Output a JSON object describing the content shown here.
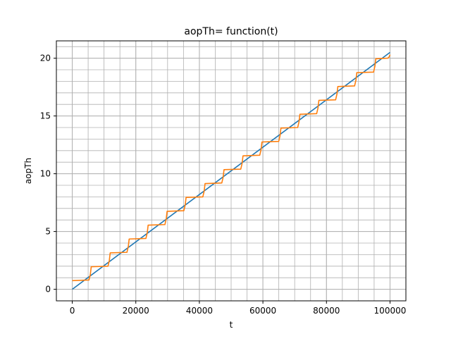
{
  "chart_data": {
    "type": "line",
    "title": "aopTh= function(t)",
    "xlabel": "t",
    "ylabel": "aopTh",
    "xlim": [
      -5000,
      105000
    ],
    "ylim": [
      -1.0,
      21.5
    ],
    "xticks": [
      0,
      20000,
      40000,
      60000,
      80000,
      100000
    ],
    "xtick_labels": [
      "0",
      "20000",
      "40000",
      "60000",
      "80000",
      "100000"
    ],
    "yticks": [
      0,
      5,
      10,
      15,
      20
    ],
    "ytick_labels": [
      "0",
      "5",
      "10",
      "15",
      "20"
    ],
    "minor_x_step": 5000,
    "minor_y_step": 1,
    "grid": true,
    "legend": "none",
    "colors": {
      "series1": "#1f77b4",
      "series2": "#ff7f0e",
      "grid": "#b0b0b0"
    },
    "series": [
      {
        "color": "#1f77b4",
        "style": "linear",
        "x": [
          0,
          100000
        ],
        "y": [
          0.0,
          20.5
        ]
      },
      {
        "color": "#ff7f0e",
        "style": "staircase",
        "step_period": 5970,
        "step_height": 1.2,
        "x": [
          0,
          5970,
          11940,
          17910,
          23880,
          29850,
          35820,
          41790,
          47760,
          53730,
          59700,
          65670,
          71640,
          77610,
          83580,
          89550,
          95520,
          100000
        ],
        "y": [
          0.75,
          1.95,
          3.15,
          4.35,
          5.55,
          6.75,
          7.95,
          9.15,
          10.35,
          11.55,
          12.75,
          13.95,
          15.15,
          16.35,
          17.55,
          18.75,
          19.95,
          20.3
        ]
      }
    ]
  }
}
